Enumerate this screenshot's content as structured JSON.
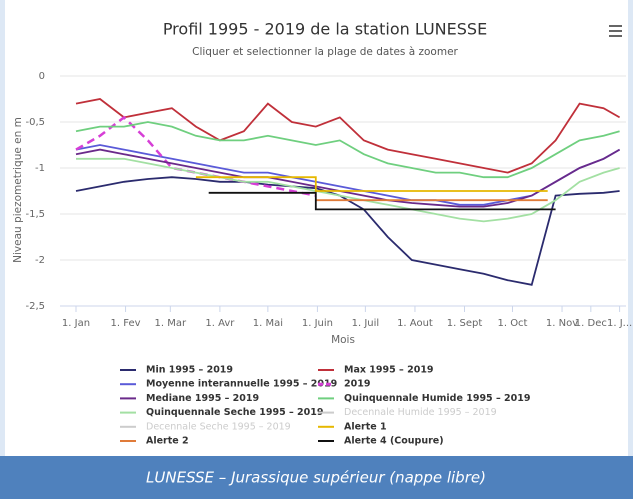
{
  "chart_data": {
    "type": "line",
    "title": "Profil 1995 - 2019 de la station LUNESSE",
    "subtitle": "Cliquer et selectionner la plage de dates à zoomer",
    "ylabel": "Niveau piezometrique en m",
    "xlabel": "Mois",
    "caption": "LUNESSE – Jurassique supérieur (nappe libre)",
    "grid": true,
    "xlim": [
      -10,
      344
    ],
    "ylim": [
      -2.5,
      0
    ],
    "yticks": [
      0,
      {
        "value": -0.5,
        "label": "-0,5"
      },
      -1,
      {
        "value": -1.5,
        "label": "-1,5"
      },
      -2,
      {
        "value": -2.5,
        "label": "-2,5"
      }
    ],
    "xticks": [
      {
        "value": 0,
        "label": "1. Jan"
      },
      {
        "value": 31,
        "label": "1. Fev"
      },
      {
        "value": 59,
        "label": "1. Mar"
      },
      {
        "value": 90,
        "label": "1. Avr"
      },
      {
        "value": 120,
        "label": "1. Mai"
      },
      {
        "value": 151,
        "label": "1. Juin"
      },
      {
        "value": 181,
        "label": "1. Juil"
      },
      {
        "value": 212,
        "label": "1. Aout"
      },
      {
        "value": 243,
        "label": "1. Sept"
      },
      {
        "value": 273,
        "label": "1. Oct"
      },
      {
        "value": 304,
        "label": "1. Nov"
      },
      {
        "value": 322,
        "label": "1. Dec"
      },
      {
        "value": 340,
        "label": "1. J..."
      }
    ],
    "x": [
      0,
      15,
      30,
      45,
      60,
      75,
      90,
      105,
      120,
      135,
      150,
      165,
      180,
      195,
      210,
      225,
      240,
      255,
      270,
      285,
      300,
      315,
      330,
      340
    ],
    "series": [
      {
        "name": "Min 1995 – 2019",
        "color": "#2b2b6e",
        "values": [
          -1.25,
          -1.2,
          -1.15,
          -1.12,
          -1.1,
          -1.12,
          -1.15,
          -1.15,
          -1.18,
          -1.2,
          -1.22,
          -1.3,
          -1.45,
          -1.75,
          -2.0,
          -2.05,
          -2.1,
          -2.15,
          -2.22,
          -2.27,
          -1.3,
          -1.28,
          -1.27,
          -1.25
        ]
      },
      {
        "name": "Max 1995 – 2019",
        "color": "#c0303a",
        "values": [
          -0.3,
          -0.25,
          -0.45,
          -0.4,
          -0.35,
          -0.55,
          -0.7,
          -0.6,
          -0.3,
          -0.5,
          -0.55,
          -0.45,
          -0.7,
          -0.8,
          -0.85,
          -0.9,
          -0.95,
          -1.0,
          -1.05,
          -0.95,
          -0.7,
          -0.3,
          -0.35,
          -0.45
        ]
      },
      {
        "name": "Moyenne interannuelle 1995 – 2019",
        "color": "#5a5ad8",
        "values": [
          -0.8,
          -0.75,
          -0.8,
          -0.85,
          -0.9,
          -0.95,
          -1.0,
          -1.05,
          -1.05,
          -1.1,
          -1.15,
          -1.2,
          -1.25,
          -1.3,
          -1.35,
          -1.35,
          -1.4,
          -1.4,
          -1.35,
          -1.3,
          -1.15,
          -1.0,
          -0.9,
          -0.8
        ]
      },
      {
        "name": "2019",
        "color": "#d63fd6",
        "dash": true,
        "values": [
          -0.8,
          -0.65,
          -0.45,
          -0.7,
          -1.0,
          -1.05,
          -1.1,
          -1.15,
          -1.2,
          -1.25,
          -1.3,
          null,
          null,
          null,
          null,
          null,
          null,
          null,
          null,
          null,
          null,
          null,
          null,
          null
        ]
      },
      {
        "name": "Mediane 1995 – 2019",
        "color": "#6a2a8a",
        "values": [
          -0.85,
          -0.8,
          -0.85,
          -0.9,
          -0.95,
          -1.0,
          -1.05,
          -1.1,
          -1.1,
          -1.15,
          -1.2,
          -1.25,
          -1.3,
          -1.35,
          -1.38,
          -1.4,
          -1.42,
          -1.42,
          -1.38,
          -1.3,
          -1.15,
          -1.0,
          -0.9,
          -0.8
        ]
      },
      {
        "name": "Quinquennale Humide 1995 – 2019",
        "color": "#6fcf7f",
        "values": [
          -0.6,
          -0.55,
          -0.55,
          -0.5,
          -0.55,
          -0.65,
          -0.7,
          -0.7,
          -0.65,
          -0.7,
          -0.75,
          -0.7,
          -0.85,
          -0.95,
          -1.0,
          -1.05,
          -1.05,
          -1.1,
          -1.1,
          -1.0,
          -0.85,
          -0.7,
          -0.65,
          -0.6
        ]
      },
      {
        "name": "Quinquennale Seche 1995 – 2019",
        "color": "#a3e0a3",
        "values": [
          -0.9,
          -0.9,
          -0.9,
          -0.95,
          -1.0,
          -1.05,
          -1.1,
          -1.15,
          -1.15,
          -1.2,
          -1.25,
          -1.3,
          -1.35,
          -1.4,
          -1.45,
          -1.5,
          -1.55,
          -1.58,
          -1.55,
          -1.5,
          -1.35,
          -1.15,
          -1.05,
          -1.0
        ]
      },
      {
        "name": "Decennale Humide 1995 – 2019",
        "color": "#cccccc",
        "visible": false
      },
      {
        "name": "Decennale Seche 1995 – 2019",
        "color": "#cccccc",
        "visible": false
      },
      {
        "name": "Alerte 1",
        "color": "#e6b800",
        "x": [
          75,
          150,
          150,
          295
        ],
        "values": [
          -1.1,
          -1.1,
          -1.25,
          -1.25
        ]
      },
      {
        "name": "Alerte 2",
        "color": "#e07b39",
        "x": [
          150,
          295
        ],
        "values": [
          -1.35,
          -1.35
        ]
      },
      {
        "name": "Alerte 4 (Coupure)",
        "color": "#111111",
        "x": [
          83,
          150,
          150,
          300
        ],
        "values": [
          -1.27,
          -1.27,
          -1.45,
          -1.45
        ]
      }
    ]
  }
}
